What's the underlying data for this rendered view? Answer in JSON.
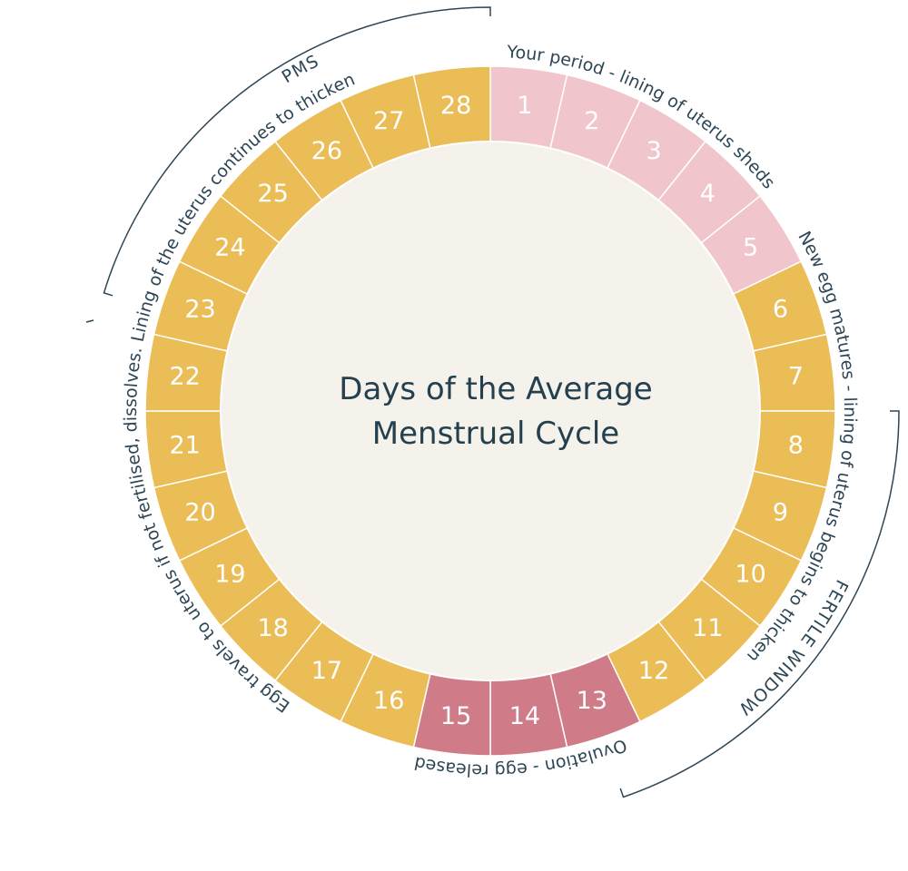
{
  "title": [
    "Days of the Average",
    "Menstrual Cycle"
  ],
  "days": [
    {
      "label": "1",
      "color": "#f0c6cc"
    },
    {
      "label": "2",
      "color": "#f0c6cc"
    },
    {
      "label": "3",
      "color": "#f0c6cc"
    },
    {
      "label": "4",
      "color": "#f0c6cc"
    },
    {
      "label": "5",
      "color": "#f0c6cc"
    },
    {
      "label": "6",
      "color": "#ebbd56"
    },
    {
      "label": "7",
      "color": "#ebbd56"
    },
    {
      "label": "8",
      "color": "#ebbd56"
    },
    {
      "label": "9",
      "color": "#ebbd56"
    },
    {
      "label": "10",
      "color": "#ebbd56"
    },
    {
      "label": "11",
      "color": "#ebbd56"
    },
    {
      "label": "12",
      "color": "#ebbd56"
    },
    {
      "label": "13",
      "color": "#cf7c88"
    },
    {
      "label": "14",
      "color": "#cf7c88"
    },
    {
      "label": "15",
      "color": "#cf7c88"
    },
    {
      "label": "16",
      "color": "#ebbd56"
    },
    {
      "label": "17",
      "color": "#ebbd56"
    },
    {
      "label": "18",
      "color": "#ebbd56"
    },
    {
      "label": "19",
      "color": "#ebbd56"
    },
    {
      "label": "20",
      "color": "#ebbd56"
    },
    {
      "label": "21",
      "color": "#ebbd56"
    },
    {
      "label": "22",
      "color": "#ebbd56"
    },
    {
      "label": "23",
      "color": "#ebbd56"
    },
    {
      "label": "24",
      "color": "#ebbd56"
    },
    {
      "label": "25",
      "color": "#ebbd56"
    },
    {
      "label": "26",
      "color": "#ebbd56"
    },
    {
      "label": "27",
      "color": "#ebbd56"
    },
    {
      "label": "28",
      "color": "#ebbd56"
    }
  ],
  "phase_labels": [
    "Your period - lining of uterus sheds",
    "New egg matures - lining of uterus begins to thicken",
    "Ovulation - egg released",
    "Egg travels to uterus if not fertilised, dissolves. Lining of the uterus continues to thicken"
  ],
  "brackets": [
    "PMS",
    "FERTILE WINDOW"
  ]
}
